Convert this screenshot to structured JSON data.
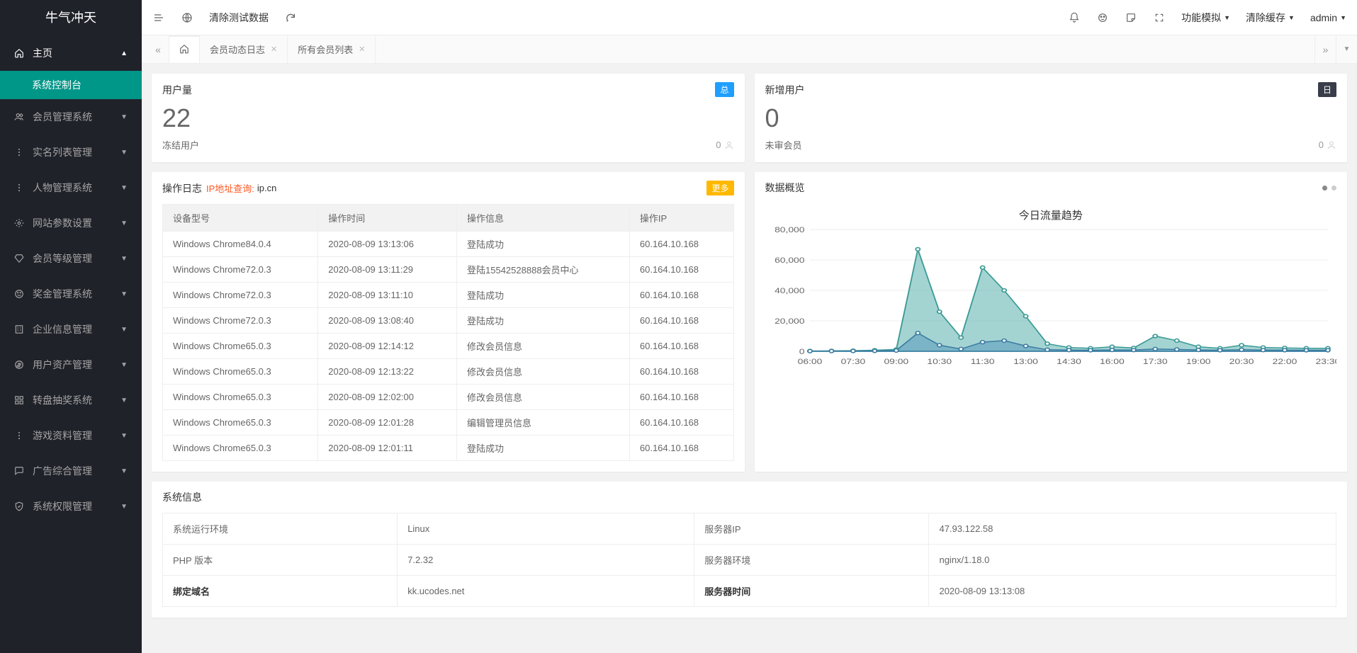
{
  "brand": "牛气冲天",
  "side": {
    "home": {
      "label": "主页",
      "open": true,
      "children": [
        {
          "label": "系统控制台",
          "active": true
        }
      ]
    },
    "items": [
      {
        "icon": "users",
        "label": "会员管理系统"
      },
      {
        "icon": "dots-v",
        "label": "实名列表管理"
      },
      {
        "icon": "dots-v",
        "label": "人物管理系统"
      },
      {
        "icon": "gear",
        "label": "网站参数设置"
      },
      {
        "icon": "diamond",
        "label": "会员等级管理"
      },
      {
        "icon": "smile",
        "label": "奖金管理系统"
      },
      {
        "icon": "building",
        "label": "企业信息管理"
      },
      {
        "icon": "wallet",
        "label": "用户资产管理"
      },
      {
        "icon": "grid",
        "label": "转盘抽奖系统"
      },
      {
        "icon": "dots-v",
        "label": "游戏资料管理"
      },
      {
        "icon": "chat",
        "label": "广告综合管理"
      },
      {
        "icon": "shield",
        "label": "系统权限管理"
      }
    ]
  },
  "top": {
    "clear_test": "清除测试数据",
    "right": [
      {
        "label": "功能模拟"
      },
      {
        "label": "清除缓存"
      },
      {
        "label": "admin"
      }
    ]
  },
  "tabs": [
    {
      "home": true
    },
    {
      "label": "会员动态日志",
      "closable": true
    },
    {
      "label": "所有会员列表",
      "closable": true
    }
  ],
  "stats": {
    "users": {
      "title": "用户量",
      "badge": "总",
      "value": "22",
      "foot_label": "冻结用户",
      "foot_val": "0"
    },
    "newu": {
      "title": "新增用户",
      "badge": "日",
      "value": "0",
      "foot_label": "未审会员",
      "foot_val": "0"
    }
  },
  "oplog": {
    "title": "操作日志",
    "ip_label": "IP地址查询:",
    "ip_site": "ip.cn",
    "more": "更多",
    "cols": [
      "设备型号",
      "操作时间",
      "操作信息",
      "操作IP"
    ],
    "rows": [
      [
        "Windows Chrome84.0.4",
        "2020-08-09 13:13:06",
        "登陆成功",
        "60.164.10.168"
      ],
      [
        "Windows Chrome72.0.3",
        "2020-08-09 13:11:29",
        "登陆15542528888会员中心",
        "60.164.10.168"
      ],
      [
        "Windows Chrome72.0.3",
        "2020-08-09 13:11:10",
        "登陆成功",
        "60.164.10.168"
      ],
      [
        "Windows Chrome72.0.3",
        "2020-08-09 13:08:40",
        "登陆成功",
        "60.164.10.168"
      ],
      [
        "Windows Chrome65.0.3",
        "2020-08-09 12:14:12",
        "修改会员信息",
        "60.164.10.168"
      ],
      [
        "Windows Chrome65.0.3",
        "2020-08-09 12:13:22",
        "修改会员信息",
        "60.164.10.168"
      ],
      [
        "Windows Chrome65.0.3",
        "2020-08-09 12:02:00",
        "修改会员信息",
        "60.164.10.168"
      ],
      [
        "Windows Chrome65.0.3",
        "2020-08-09 12:01:28",
        "编辑管理员信息",
        "60.164.10.168"
      ],
      [
        "Windows Chrome65.0.3",
        "2020-08-09 12:01:11",
        "登陆成功",
        "60.164.10.168"
      ]
    ]
  },
  "overview": {
    "title": "数据概览",
    "chart_title": "今日流量趋势",
    "y_ticks": [
      0,
      20000,
      40000,
      60000,
      80000
    ],
    "y_labels": [
      "0",
      "20,000",
      "40,000",
      "60,000",
      "80,000"
    ],
    "x_labels": [
      "06:00",
      "07:30",
      "09:00",
      "10:30",
      "11:30",
      "13:00",
      "14:30",
      "16:00",
      "17:30",
      "19:00",
      "20:30",
      "22:00",
      "23:30"
    ],
    "series1": [
      200,
      300,
      400,
      700,
      1200,
      67000,
      26000,
      9000,
      55000,
      40000,
      23000,
      5000,
      2500,
      2000,
      3000,
      2200,
      10000,
      7000,
      3000,
      2000,
      4000,
      2500,
      2200,
      2000,
      2000
    ],
    "series2": [
      100,
      150,
      200,
      300,
      500,
      12000,
      4000,
      1500,
      6000,
      7000,
      3500,
      1000,
      800,
      700,
      900,
      800,
      1500,
      1200,
      900,
      700,
      1000,
      800,
      750,
      700,
      700
    ],
    "s1_color": "#3c9b96",
    "s2_color": "#3b7ca3"
  },
  "sysinfo": {
    "title": "系统信息",
    "rows": [
      [
        {
          "k": "系统运行环境"
        },
        {
          "v": "Linux"
        },
        {
          "k": "服务器IP"
        },
        {
          "v": "47.93.122.58"
        }
      ],
      [
        {
          "k": "PHP 版本"
        },
        {
          "v": "7.2.32"
        },
        {
          "k": "服务器环境"
        },
        {
          "v": "nginx/1.18.0"
        }
      ],
      [
        {
          "k": "绑定域名",
          "bold": true
        },
        {
          "v": "kk.ucodes.net"
        },
        {
          "k": "服务器时间",
          "bold": true
        },
        {
          "v": "2020-08-09 13:13:08"
        }
      ]
    ]
  }
}
